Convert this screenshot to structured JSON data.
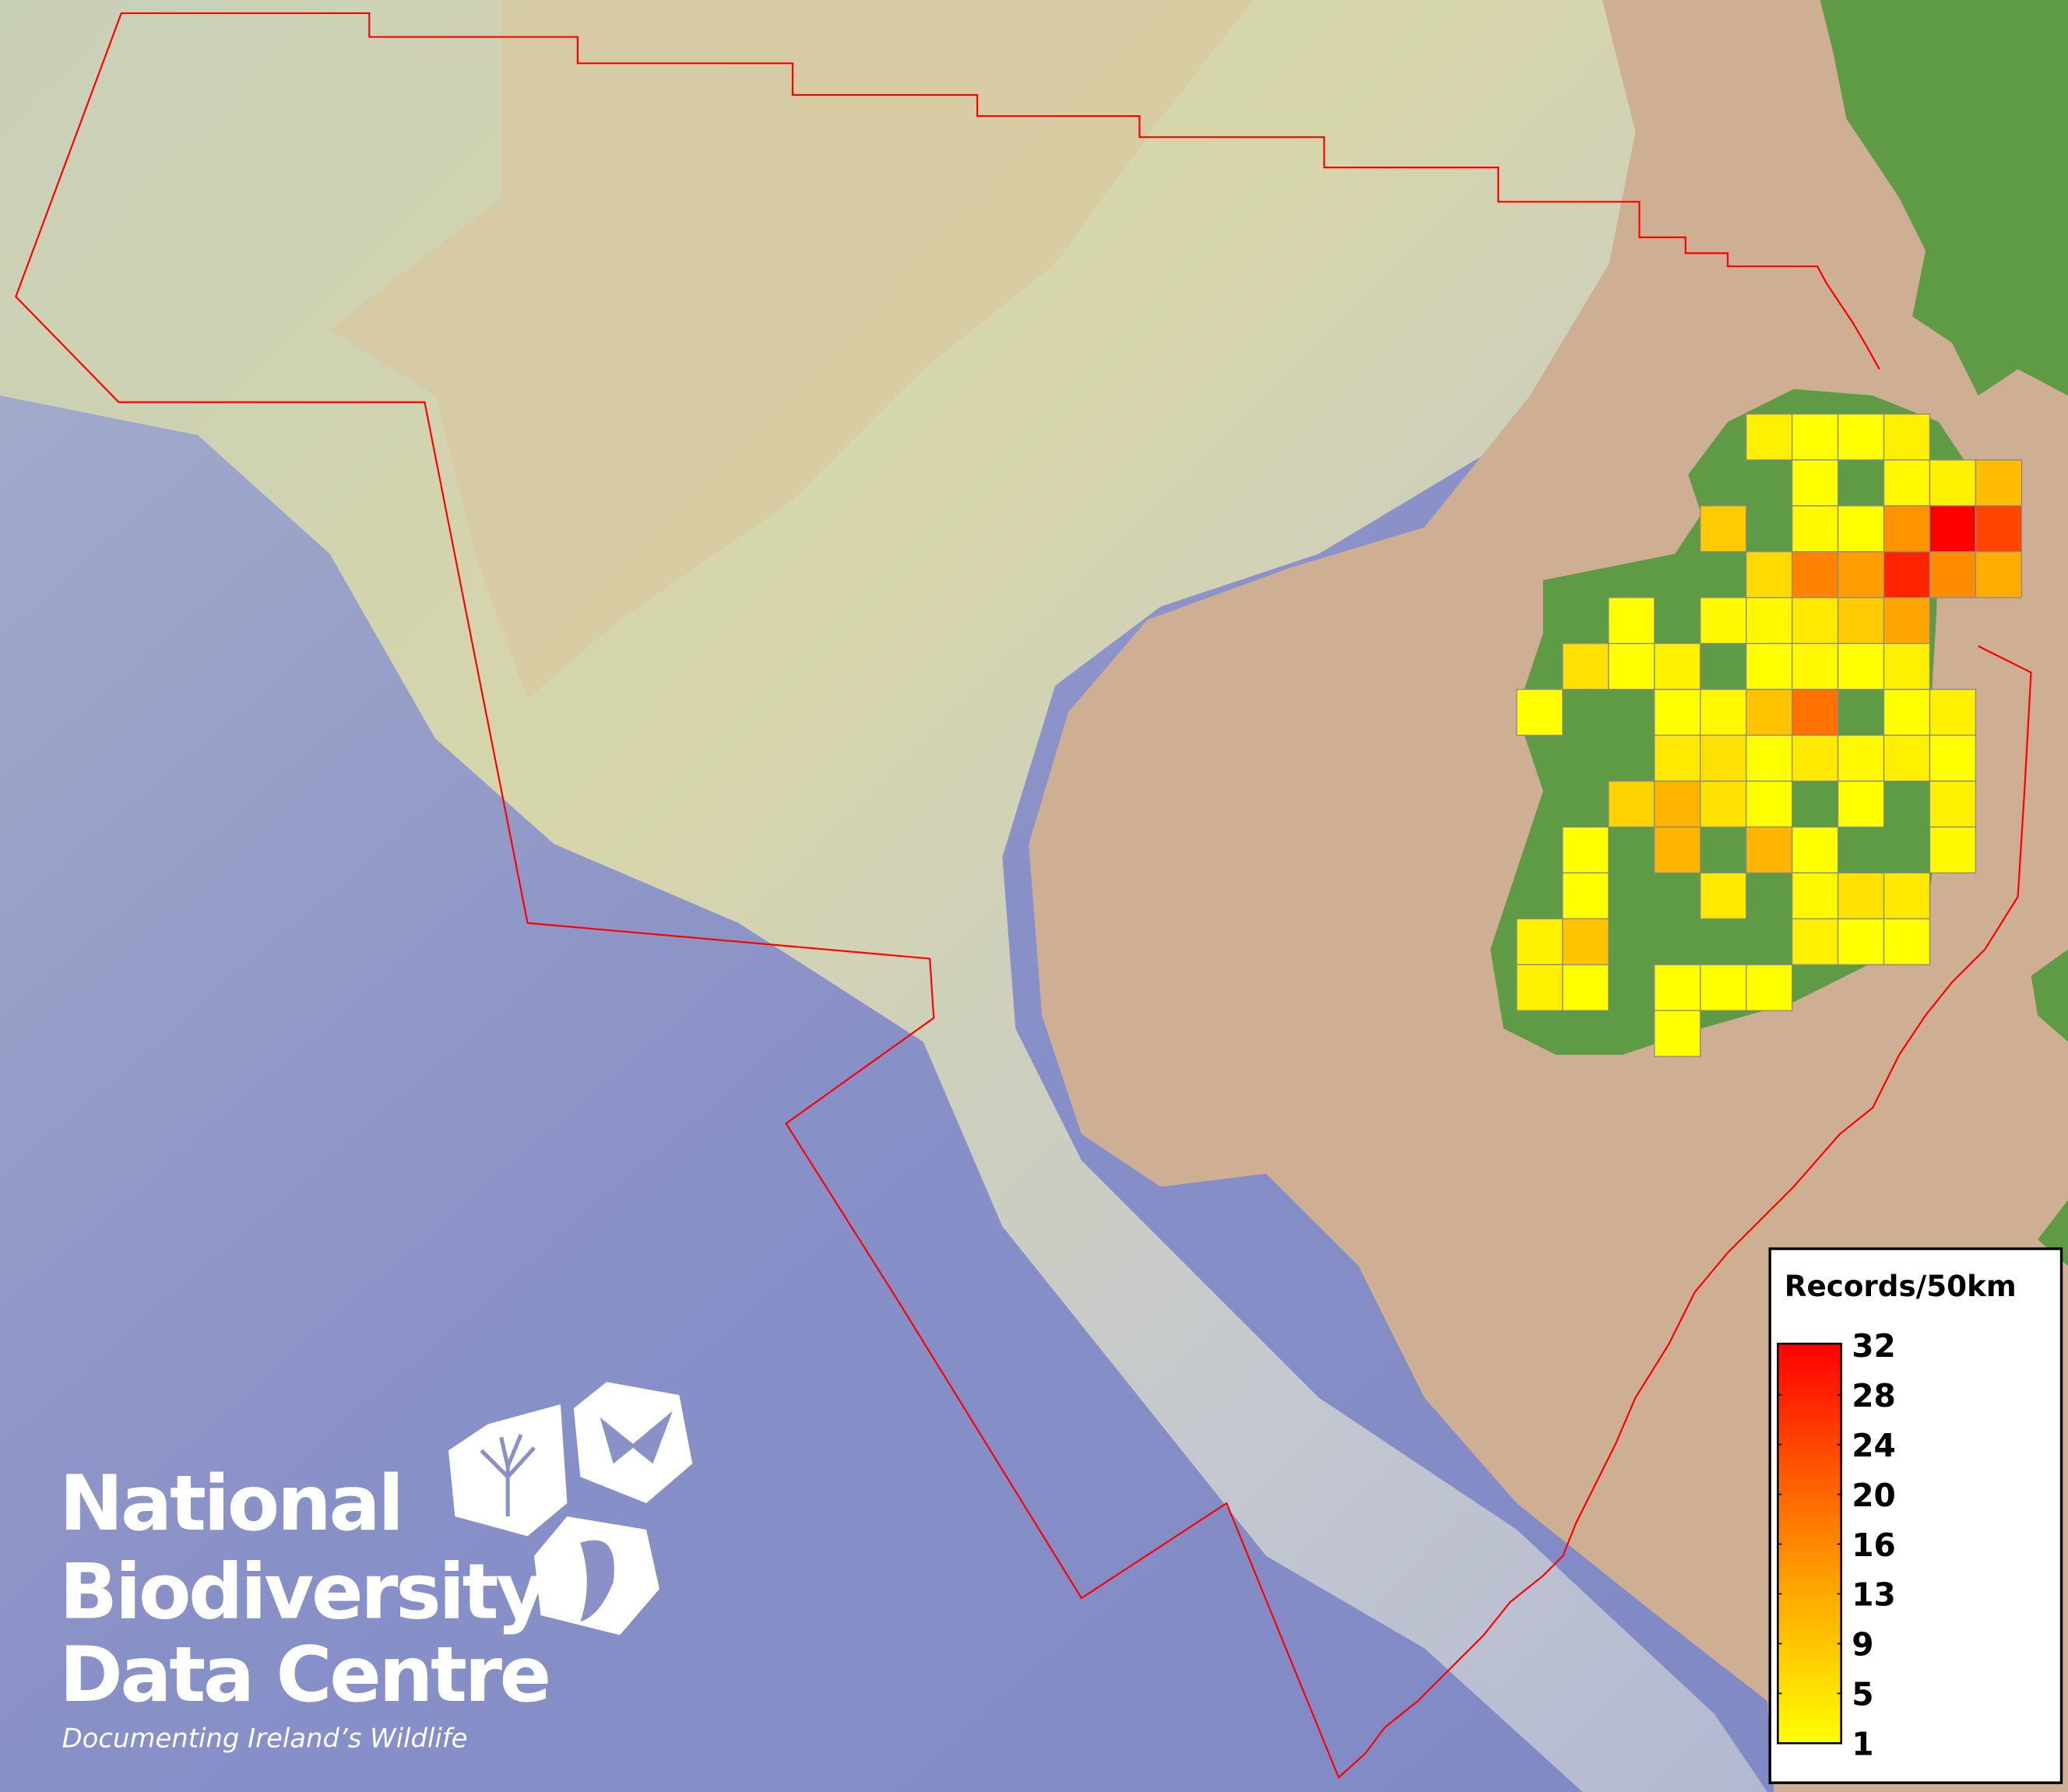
{
  "logo": {
    "line1": "National",
    "line2": "Biodiversity",
    "line3": "Data Centre",
    "tagline": "Documenting Ireland’s Wildlife"
  },
  "colors": {
    "ocean": "#8a91c9",
    "shelf": "#cfd2b4",
    "land_shelf": "#d0ad90",
    "land": "#5f9a45",
    "boundary": "#ff0000",
    "scale_low": "#ffff00",
    "scale_mid": "#ffa500",
    "scale_high": "#ff0000"
  },
  "chart_data": {
    "type": "heatmap",
    "legend": {
      "title": "Records/50km",
      "ticks": [
        "32",
        "28",
        "24",
        "20",
        "16",
        "13",
        "9",
        "5",
        "1"
      ],
      "min": 1,
      "max": 32,
      "placement": "bottom-right"
    },
    "grid": [
      [
        null,
        null,
        null,
        null,
        null,
        3,
        1,
        1,
        3,
        null,
        null
      ],
      [
        null,
        null,
        null,
        null,
        null,
        null,
        1,
        null,
        2,
        3,
        10
      ],
      [
        null,
        null,
        null,
        null,
        8,
        null,
        2,
        1,
        15,
        32,
        24
      ],
      [
        null,
        null,
        null,
        null,
        null,
        6,
        17,
        14,
        28,
        16,
        12
      ],
      [
        null,
        null,
        1,
        null,
        2,
        2,
        4,
        8,
        13,
        null,
        null
      ],
      [
        null,
        5,
        1,
        3,
        null,
        1,
        2,
        1,
        3,
        null,
        null
      ],
      [
        1,
        null,
        null,
        1,
        2,
        9,
        19,
        null,
        1,
        3,
        null
      ],
      [
        null,
        null,
        null,
        4,
        5,
        1,
        4,
        2,
        3,
        1,
        null
      ],
      [
        null,
        null,
        7,
        11,
        5,
        1,
        null,
        1,
        null,
        3,
        null
      ],
      [
        null,
        1,
        null,
        11,
        null,
        11,
        1,
        null,
        null,
        2,
        null
      ],
      [
        null,
        1,
        null,
        null,
        4,
        null,
        2,
        5,
        4,
        null,
        null
      ],
      [
        3,
        9,
        null,
        null,
        null,
        null,
        3,
        1,
        1,
        null,
        null
      ],
      [
        3,
        1,
        null,
        1,
        1,
        1,
        null,
        null,
        null,
        null,
        null
      ],
      [
        null,
        null,
        null,
        1,
        null,
        null,
        null,
        null,
        null,
        null,
        null
      ]
    ]
  }
}
